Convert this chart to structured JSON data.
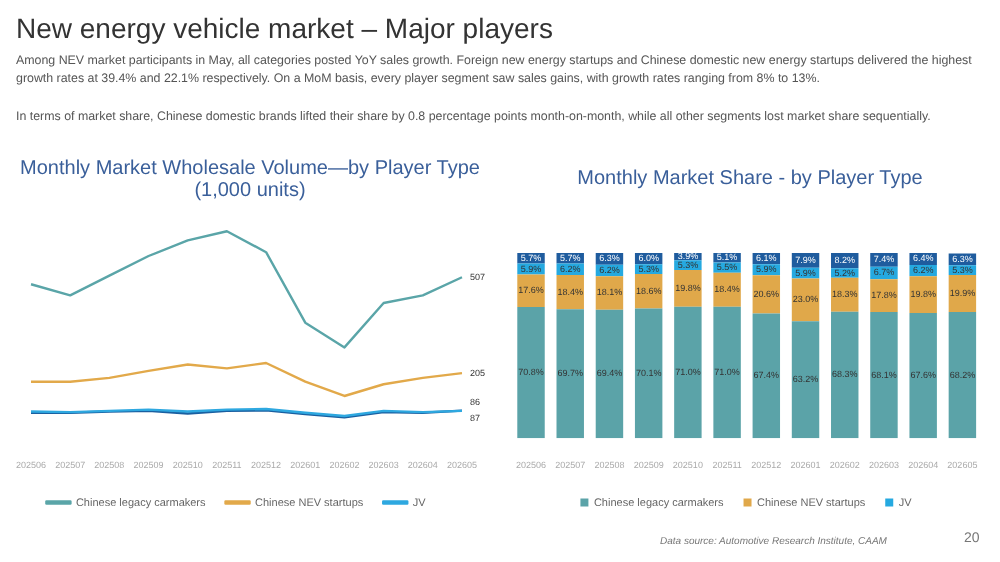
{
  "chart_data": [
    {
      "type": "line",
      "title": "Monthly Market Wholesale Volume—by Player Type (1,000 units)",
      "annotations": [
        "New energy vehicle market – Major players",
        "Among NEV market participants in May, all categories posted YoY sales growth. Foreign new energy startups and Chinese domestic new energy startups delivered the highest growth rates at 39.4% and 22.1% respectively. On a MoM basis, every player segment saw sales gains, with growth rates ranging from 8% to 13%.",
        "In terms of market share, Chinese domestic brands lifted their share by 0.8 percentage points month-on-month, while all other segments lost market share sequentially."
      ],
      "categories": [
        "202506",
        "202507",
        "202508",
        "202509",
        "202510",
        "202511",
        "202512",
        "202601",
        "202602",
        "202603",
        "202604",
        "202605"
      ],
      "tick_labels": "x",
      "grid": false,
      "legend": "bottom",
      "marker": "none",
      "series": [
        {
          "name": "Chinese legacy carmakers",
          "color": "#5aa5a8",
          "values": [
            485,
            450,
            512,
            574,
            623,
            652,
            586,
            364,
            286,
            426,
            450,
            507
          ],
          "value_labels": [
            null,
            null,
            null,
            null,
            null,
            null,
            null,
            null,
            null,
            null,
            null,
            "507"
          ]
        },
        {
          "name": "Chinese NEV startups",
          "color": "#e2a94a",
          "values": [
            178,
            178,
            190,
            212,
            232,
            220,
            237,
            178,
            133,
            170,
            190,
            205
          ],
          "value_labels": [
            null,
            null,
            null,
            null,
            null,
            null,
            null,
            null,
            null,
            null,
            null,
            "205"
          ]
        },
        {
          "name": "JV",
          "color": "#2ea8e0",
          "values": [
            84,
            82,
            86,
            90,
            84,
            90,
            92,
            80,
            70,
            86,
            82,
            86
          ],
          "value_labels": [
            null,
            null,
            null,
            null,
            null,
            null,
            null,
            null,
            null,
            null,
            null,
            "86"
          ]
        },
        {
          "color": "#1a5fa0",
          "values": [
            80,
            80,
            84,
            86,
            78,
            86,
            88,
            76,
            66,
            82,
            80,
            87
          ],
          "value_labels": [
            null,
            null,
            null,
            null,
            null,
            null,
            null,
            null,
            null,
            null,
            null,
            "87"
          ]
        }
      ]
    },
    {
      "type": "bar",
      "title": "Monthly Market Share - by Player Type",
      "stacked": true,
      "tick_labels": "x",
      "legend": "bottom",
      "grid": false,
      "annotations": [
        "Data source: Automotive Research Institute, CAAM",
        "20"
      ],
      "categories": [
        "202506",
        "202507",
        "202508",
        "202509",
        "202510",
        "202511",
        "202512",
        "202601",
        "202602",
        "202603",
        "202604",
        "202605"
      ],
      "series": [
        {
          "name": "Chinese legacy carmakers",
          "color": "#5ba3a8",
          "values": [
            70.8,
            69.7,
            69.4,
            70.1,
            71.0,
            71.0,
            67.4,
            63.2,
            68.3,
            68.1,
            67.6,
            68.2
          ],
          "value_labels": [
            "70.8%",
            "69.7%",
            "69.4%",
            "70.1%",
            "71.0%",
            "71.0%",
            "67.4%",
            "63.2%",
            "68.3%",
            "68.1%",
            "67.6%",
            "68.2%"
          ]
        },
        {
          "name": "Chinese NEV startups",
          "color": "#e0a84a",
          "values": [
            17.6,
            18.4,
            18.1,
            18.6,
            19.8,
            18.4,
            20.6,
            23.0,
            18.3,
            17.8,
            19.8,
            19.9
          ],
          "value_labels": [
            "17.6%",
            "18.4%",
            "18.1%",
            "18.6%",
            "19.8%",
            "18.4%",
            "20.6%",
            "23.0%",
            "18.3%",
            "17.8%",
            "19.8%",
            "19.9%"
          ]
        },
        {
          "name": "JV",
          "color": "#25a9e0",
          "values": [
            5.9,
            6.2,
            6.2,
            5.3,
            5.3,
            5.5,
            5.9,
            5.9,
            5.2,
            6.7,
            6.2,
            5.3
          ],
          "value_labels": [
            "5.9%",
            "6.2%",
            "6.2%",
            "5.3%",
            "5.3%",
            "5.5%",
            "5.9%",
            "5.9%",
            "5.2%",
            "6.7%",
            "6.2%",
            "5.3%"
          ]
        },
        {
          "color": "#1f5c9e",
          "values": [
            5.7,
            5.7,
            6.3,
            6.0,
            3.9,
            5.1,
            6.1,
            7.9,
            8.2,
            7.4,
            6.4,
            6.3
          ],
          "value_labels": [
            "5.7%",
            "5.7%",
            "6.3%",
            "6.0%",
            "3.9%",
            "5.1%",
            "6.1%",
            "7.9%",
            "8.2%",
            "7.4%",
            "6.4%",
            "6.3%"
          ]
        }
      ]
    }
  ]
}
